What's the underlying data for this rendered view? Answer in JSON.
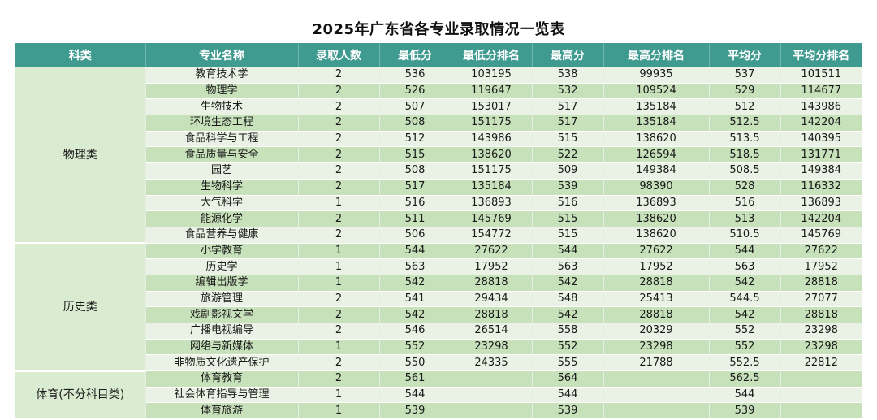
{
  "title": "2025年广东省各专业录取情况一览表",
  "headers": [
    "科类",
    "专业名称",
    "录取人数",
    "最低分",
    "最低分排名",
    "最高分",
    "最高分排名",
    "平均分",
    "平均分排名"
  ],
  "groups": [
    {
      "category": "物理类",
      "rows": [
        [
          "教育技术学",
          "2",
          "536",
          "103195",
          "538",
          "99935",
          "537",
          "101511"
        ],
        [
          "物理学",
          "2",
          "526",
          "119647",
          "532",
          "109524",
          "529",
          "114677"
        ],
        [
          "生物技术",
          "2",
          "507",
          "153017",
          "517",
          "135184",
          "512",
          "143986"
        ],
        [
          "环境生态工程",
          "2",
          "508",
          "151175",
          "517",
          "135184",
          "512.5",
          "142204"
        ],
        [
          "食品科学与工程",
          "2",
          "512",
          "143986",
          "515",
          "138620",
          "513.5",
          "140395"
        ],
        [
          "食品质量与安全",
          "2",
          "515",
          "138620",
          "522",
          "126594",
          "518.5",
          "131771"
        ],
        [
          "园艺",
          "2",
          "508",
          "151175",
          "509",
          "149384",
          "508.5",
          "149384"
        ],
        [
          "生物科学",
          "2",
          "517",
          "135184",
          "539",
          "98390",
          "528",
          "116332"
        ],
        [
          "大气科学",
          "1",
          "516",
          "136893",
          "516",
          "136893",
          "516",
          "136893"
        ],
        [
          "能源化学",
          "2",
          "511",
          "145769",
          "515",
          "138620",
          "513",
          "142204"
        ],
        [
          "食品营养与健康",
          "2",
          "506",
          "154772",
          "515",
          "138620",
          "510.5",
          "145769"
        ]
      ]
    },
    {
      "category": "历史类",
      "rows": [
        [
          "小学教育",
          "1",
          "544",
          "27622",
          "544",
          "27622",
          "544",
          "27622"
        ],
        [
          "历史学",
          "1",
          "563",
          "17952",
          "563",
          "17952",
          "563",
          "17952"
        ],
        [
          "编辑出版学",
          "1",
          "542",
          "28818",
          "542",
          "28818",
          "542",
          "28818"
        ],
        [
          "旅游管理",
          "2",
          "541",
          "29434",
          "548",
          "25413",
          "544.5",
          "27077"
        ],
        [
          "戏剧影视文学",
          "2",
          "542",
          "28818",
          "542",
          "28818",
          "542",
          "28818"
        ],
        [
          "广播电视编导",
          "2",
          "546",
          "26514",
          "558",
          "20329",
          "552",
          "23298"
        ],
        [
          "网络与新媒体",
          "1",
          "552",
          "23298",
          "552",
          "23298",
          "552",
          "23298"
        ],
        [
          "非物质文化遗产保护",
          "2",
          "550",
          "24335",
          "555",
          "21788",
          "552.5",
          "22812"
        ]
      ]
    },
    {
      "category": "体育(不分科目类)",
      "rows": [
        [
          "体育教育",
          "2",
          "561",
          "",
          "564",
          "",
          "562.5",
          ""
        ],
        [
          "社会体育指导与管理",
          "1",
          "544",
          "",
          "544",
          "",
          "544",
          ""
        ],
        [
          "体育旅游",
          "1",
          "539",
          "",
          "539",
          "",
          "539",
          ""
        ]
      ]
    }
  ]
}
